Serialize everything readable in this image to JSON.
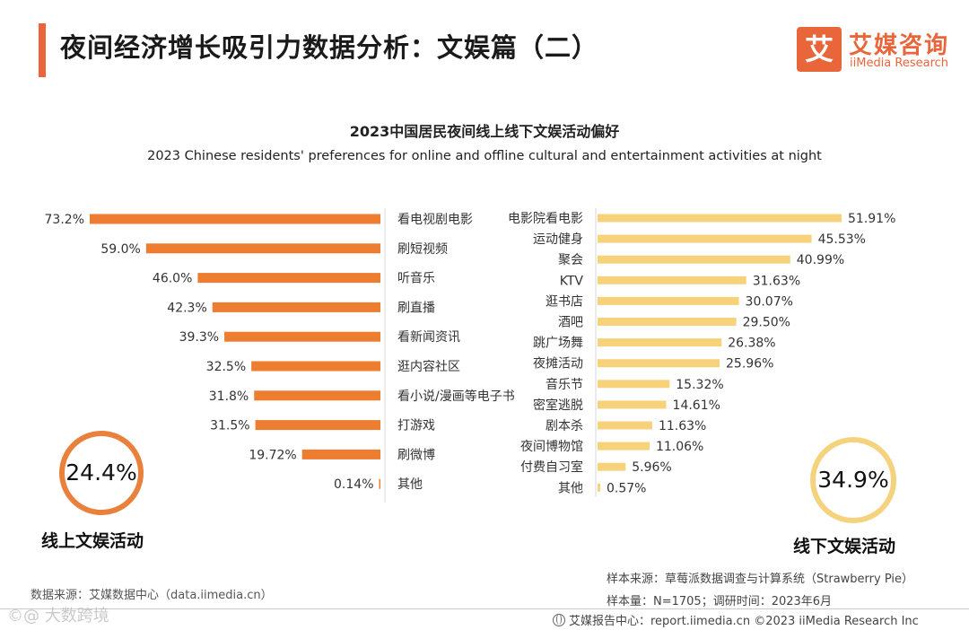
{
  "header": {
    "title": "夜间经济增长吸引力数据分析：文娱篇（二）",
    "logo_mark": "艾",
    "logo_cn": "艾媒咨询",
    "logo_en": "iiMedia Research"
  },
  "colors": {
    "accent": "#e9653a",
    "online_bar": "#ed7d31",
    "offline_bar": "#f7d27a",
    "offline_ring": "#f5d27e"
  },
  "chart_data": [
    {
      "type": "bar",
      "orientation": "horizontal",
      "direction": "leftward",
      "title": "2023中国居民夜间线上线下文娱活动偏好",
      "subtitle": "2023 Chinese residents' preferences for online and offline cultural and entertainment activities at night",
      "group": "线上文娱活动",
      "group_share": "24.4%",
      "categories": [
        "看电视剧电影",
        "刷短视频",
        "听音乐",
        "刷直播",
        "看新闻资讯",
        "逛内容社区",
        "看小说/漫画等电子书",
        "打游戏",
        "刷微博",
        "其他"
      ],
      "values": [
        73.2,
        59.0,
        46.0,
        42.3,
        39.3,
        32.5,
        31.8,
        31.5,
        19.72,
        0.14
      ],
      "value_labels": [
        "73.2%",
        "59.0%",
        "46.0%",
        "42.3%",
        "39.3%",
        "32.5%",
        "31.8%",
        "31.5%",
        "19.72%",
        "0.14%"
      ],
      "unit": "%",
      "xlim": [
        0,
        73.2
      ]
    },
    {
      "type": "bar",
      "orientation": "horizontal",
      "direction": "rightward",
      "group": "线下文娱活动",
      "group_share": "34.9%",
      "categories": [
        "电影院看电影",
        "运动健身",
        "聚会",
        "KTV",
        "逛书店",
        "酒吧",
        "跳广场舞",
        "夜摊活动",
        "音乐节",
        "密室逃脱",
        "剧本杀",
        "夜间博物馆",
        "付费自习室",
        "其他"
      ],
      "values": [
        51.91,
        45.53,
        40.99,
        31.63,
        30.07,
        29.5,
        26.38,
        25.96,
        15.32,
        14.61,
        11.63,
        11.06,
        5.96,
        0.57
      ],
      "value_labels": [
        "51.91%",
        "45.53%",
        "40.99%",
        "31.63%",
        "30.07%",
        "29.50%",
        "26.38%",
        "25.96%",
        "15.32%",
        "14.61%",
        "11.63%",
        "11.06%",
        "5.96%",
        "0.57%"
      ],
      "unit": "%",
      "xlim": [
        0,
        51.91
      ]
    }
  ],
  "sources": {
    "data_source": "数据来源：艾媒数据中心（data.iimedia.cn）",
    "sample_source": "样本来源：草莓派数据调查与计算系统（Strawberry Pie）",
    "sample_size": "样本量：N=1705；调研时间：2023年6月"
  },
  "footer": {
    "text": "艾媒报告中心：report.iimedia.cn  ©2023  iiMedia Research  Inc"
  },
  "watermark": "©@ 大数跨境"
}
